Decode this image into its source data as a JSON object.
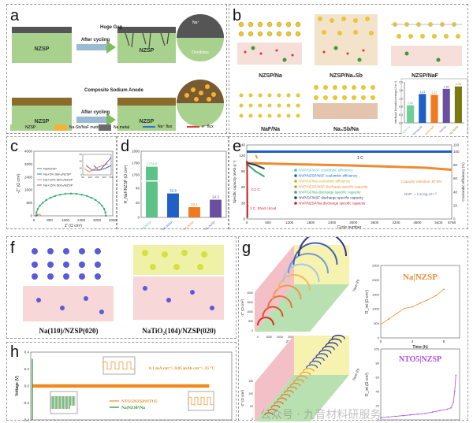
{
  "figure": {
    "panels": {
      "a": {
        "label": "a",
        "block_label": "NZSP",
        "huge_gap": "Huge Gap",
        "after_cycling": "After cycling",
        "dendrites": "Dendrites",
        "composite_anode": "Composite Sodium Anode",
        "na_ion": "Na⁺",
        "legend": [
          {
            "label": "NZSP",
            "color": "#a9d18e"
          },
          {
            "label": "Na-Sb/NaF matrix",
            "color": "#f5b335"
          },
          {
            "label": "Na metal",
            "color": "#6b6b6b"
          },
          {
            "label": "Na⁺ flux",
            "color": "#2f6fd6"
          },
          {
            "label": "e⁻ flux",
            "color": "#e03b3b"
          }
        ]
      },
      "b": {
        "label": "b",
        "structures": [
          "NZSP/Na",
          "NZSP/Na₃Sb",
          "NZSP/NaF",
          "NaF/Na",
          "Na₃Sb/Na"
        ]
      },
      "c": {
        "label": "c"
      },
      "d": {
        "label": "d"
      },
      "e": {
        "label": "e"
      },
      "f": {
        "label": "f",
        "left_caption": "Na(110)/NZSP(020)",
        "right_caption": "NaTiO₂(104)/NZSP(020)"
      },
      "g": {
        "label": "g"
      },
      "h": {
        "label": "h"
      }
    },
    "watermark": "公众号 · 九音材料研服务"
  },
  "chart_data": [
    {
      "id": "b-inset",
      "type": "bar",
      "title": "",
      "ylabel": "Interfacial formation energy (J m⁻²)",
      "categories": [
        "NZSP/Na",
        "NZSP/Na₃Sb",
        "NZSP/NaF",
        "NaF/Na",
        "Na₃Sb/Na"
      ],
      "values": [
        0.86,
        1.41,
        1.37,
        1.66,
        1.78
      ],
      "value_labels": [
        "0.86",
        "1.41",
        "1.37",
        "1.66",
        "1.78"
      ],
      "colors": [
        "#6fcf97",
        "#1f5fc8",
        "#f07a22",
        "#6a4fa0",
        "#7a7a10"
      ],
      "ylim": [
        0,
        2.0
      ],
      "yticks": [
        "0.0",
        "0.4",
        "0.8",
        "1.2",
        "1.6",
        "2.0"
      ]
    },
    {
      "id": "c",
      "type": "line",
      "xlabel": "Z' (Ω cm²)",
      "ylabel": "-Z'' (Ω cm²)",
      "xlim": [
        0,
        4000
      ],
      "ylim": [
        0,
        4000
      ],
      "xticks": [
        "0",
        "800",
        "1600",
        "2400",
        "3200",
        "4000"
      ],
      "yticks": [
        "0",
        "800",
        "1600",
        "2400",
        "3200",
        "4000"
      ],
      "legend": [
        "Na/NZSP",
        "Na+5% SbF₃/NZSP",
        "Na+10% SbF₃/NZSP",
        "Na+15% SbF₃/NZSP"
      ],
      "series": [
        {
          "name": "Na/NZSP",
          "color": "#2ea86a",
          "center": 1880,
          "radius": 1770
        },
        {
          "name": "Na+5% SbF₃/NZSP",
          "color": "#2f6fd6",
          "center": 140,
          "radius": 40
        },
        {
          "name": "Na+10% SbF₃/NZSP",
          "color": "#f08a30",
          "center": 220,
          "radius": 130
        },
        {
          "name": "Na+15% SbF₃/NZSP",
          "color": "#7a5bc0",
          "center": 150,
          "radius": 60
        }
      ],
      "inset": {
        "xlabel": "Z' (Ω cm²)",
        "ylabel": "-Z'' (Ω cm²)",
        "xticks": [
          "50",
          "100",
          "150",
          "200",
          "250"
        ],
        "yticks": [
          "0",
          "20",
          "40",
          "60"
        ]
      }
    },
    {
      "id": "d",
      "type": "bar",
      "ylabel": "R_NaF/NZSP (Ω cm²)",
      "categories": [
        "Na/NZSP",
        "Na+5%SbF₃/NZSP",
        "Na+10%SbF₃/NZSP",
        "Na+15%SbF₃/NZSP"
      ],
      "values": [
        1774.0,
        32.9,
        14.1,
        24.3
      ],
      "value_labels": [
        "1774.0",
        "32.9",
        "14.1",
        "24.3"
      ],
      "colors": [
        "#5cc28a",
        "#1f5fc8",
        "#f07a22",
        "#6a4fa0"
      ],
      "axis_break": true,
      "yticks": [
        "0",
        "20",
        "40",
        "1760",
        "1780",
        "1800"
      ]
    },
    {
      "id": "e",
      "type": "scatter",
      "xlabel": "Cycle number",
      "ylabel": "Specific capacity (mAh g⁻¹)",
      "y2label": "Coulombic efficiency (%)",
      "xlim": [
        0,
        5768
      ],
      "ylim": [
        0,
        140
      ],
      "y2lim": [
        0,
        110
      ],
      "xticks": [
        "0",
        "600",
        "1200",
        "1800",
        "2400",
        "3000",
        "3600",
        "4200",
        "4800",
        "5400",
        "5768"
      ],
      "yticks": [
        "0",
        "30",
        "60",
        "90",
        "120",
        "140"
      ],
      "y2ticks": [
        "0",
        "20",
        "40",
        "60",
        "80",
        "100",
        "110"
      ],
      "annotations": [
        "1 C",
        "0.1 C",
        "1 C, Short circuit",
        "Capacity retention: 87.9%",
        "NVP: ~ 1.5 mg cm⁻²"
      ],
      "series": [
        {
          "name": "NVP/GF/NSF coulombic efficiency",
          "color": "#3ec8c8",
          "axis": "y2",
          "points": [
            [
              0,
              100
            ],
            [
              500,
              100
            ]
          ]
        },
        {
          "name": "NVP/NZSP/NSF coulombic efficiency",
          "color": "#1f5fc8",
          "axis": "y2",
          "points": [
            [
              0,
              100
            ],
            [
              5768,
              100
            ]
          ]
        },
        {
          "name": "NVP/GF/Na coulombic efficiency",
          "color": "#c8b020",
          "axis": "y2",
          "points": [
            [
              250,
              95
            ],
            [
              300,
              90
            ]
          ]
        },
        {
          "name": "NVP/NZSP/NSF discharge specific capacity",
          "color": "#f08a30",
          "axis": "y",
          "points": [
            [
              0,
              106
            ],
            [
              1000,
              104
            ],
            [
              3000,
              101
            ],
            [
              5000,
              97
            ],
            [
              5768,
              93
            ]
          ]
        },
        {
          "name": "NVP/GF/Na discharge specific capacity",
          "color": "#3aa873",
          "axis": "y",
          "points": [
            [
              0,
              104
            ],
            [
              250,
              90
            ],
            [
              500,
              80
            ]
          ]
        },
        {
          "name": "NVP/GF/NSF discharge specific capacity",
          "color": "#1e3a5f",
          "axis": "y",
          "points": [
            [
              0,
              106
            ],
            [
              250,
              102
            ],
            [
              500,
              95
            ]
          ]
        },
        {
          "name": "NVP/NZSP/Na discharge specific capacity",
          "color": "#d0202a",
          "axis": "y",
          "points": [
            [
              0,
              110
            ],
            [
              10,
              100
            ],
            [
              20,
              2
            ]
          ]
        }
      ]
    },
    {
      "id": "g-top-3d",
      "type": "line",
      "xlabel": "Z' (Ω cm²)",
      "ylabel": "-Z'' (Ω cm²)",
      "zlabel": "Time (h)",
      "xticks": [
        "0",
        "1000",
        "2000",
        "3000",
        "4000"
      ],
      "yticks": [
        "0",
        "500",
        "1000",
        "1500",
        "2000"
      ],
      "zticks": [
        "0",
        "2",
        "4",
        "6",
        "8"
      ]
    },
    {
      "id": "g-top-right",
      "type": "line",
      "title": "Na|NZSP",
      "xlabel": "Time (h)",
      "ylabel": "R_int (Ω cm²)",
      "xlim": [
        0,
        10
      ],
      "ylim": [
        0,
        2500
      ],
      "xticks": [
        "0",
        "4",
        "8"
      ],
      "yticks": [
        "0",
        "500",
        "1000",
        "1500",
        "2000",
        "2500"
      ],
      "color": "#f08a30",
      "x": [
        0,
        1,
        2,
        3,
        4,
        5,
        6,
        7,
        8
      ],
      "y": [
        470,
        650,
        840,
        1020,
        1070,
        1200,
        1320,
        1460,
        1680
      ]
    },
    {
      "id": "g-bottom-3d",
      "type": "line",
      "xlabel": "Z' (Ω cm²)",
      "ylabel": "-Z'' (Ω cm²)",
      "zlabel": "Time (h)",
      "yticks": [
        "0",
        "50",
        "100",
        "150"
      ],
      "zticks": [
        "0",
        "5",
        "10",
        "15",
        "20",
        "25",
        "30",
        "35"
      ]
    },
    {
      "id": "g-bottom-right",
      "type": "line",
      "title": "NTO5|NZSP",
      "xlabel": "Time (h)",
      "ylabel": "R_int (Ω cm²)",
      "xlim": [
        0,
        32
      ],
      "ylim": [
        0,
        100
      ],
      "yticks": [
        "0",
        "20",
        "40",
        "60",
        "80",
        "100"
      ],
      "color": "#b04de0",
      "x": [
        0,
        3,
        6,
        9,
        12,
        15,
        18,
        21,
        24,
        27,
        28.5,
        29.5,
        30,
        30.5
      ],
      "y": [
        3,
        4,
        5,
        6,
        7,
        8,
        9,
        11,
        13,
        15,
        17,
        25,
        40,
        63
      ]
    },
    {
      "id": "h",
      "type": "line",
      "ylabel": "Voltage (V)",
      "ylim": [
        -0.4,
        0.4
      ],
      "yticks": [
        "-0.4",
        "-0.2",
        "0.0",
        "0.2",
        "0.4"
      ],
      "annotation": "0.1 mA cm⁻², 0.05 mAh cm⁻², 25 °C",
      "legend": [
        "NTO5|NZSP|NTO5",
        "Na|NZSP|Na"
      ],
      "series": [
        {
          "name": "NTO5|NZSP|NTO5",
          "color": "#f08a1e"
        },
        {
          "name": "Na|NZSP|Na",
          "color": "#2f8a2f"
        }
      ]
    }
  ]
}
